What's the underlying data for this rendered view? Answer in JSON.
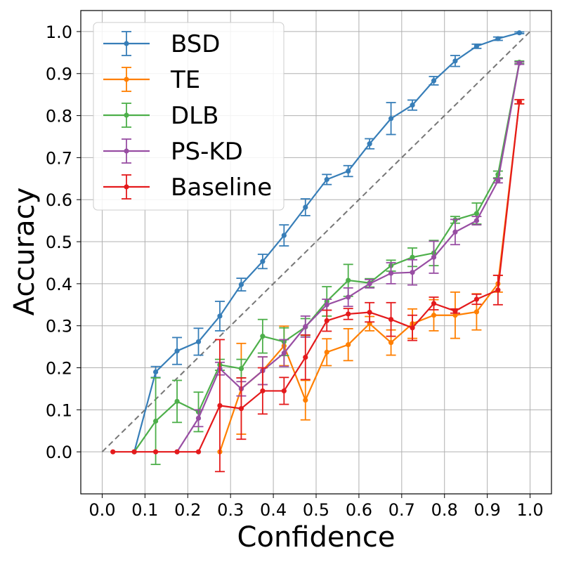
{
  "chart_data": {
    "type": "line",
    "title": "",
    "xlabel": "Confidence",
    "ylabel": "Accuracy",
    "xlim": [
      -0.05,
      1.05
    ],
    "ylim": [
      -0.1,
      1.05
    ],
    "xticks": [
      0.0,
      0.1,
      0.2,
      0.3,
      0.4,
      0.5,
      0.6,
      0.7,
      0.8,
      0.9,
      1.0
    ],
    "yticks": [
      0.0,
      0.1,
      0.2,
      0.3,
      0.4,
      0.5,
      0.6,
      0.7,
      0.8,
      0.9,
      1.0
    ],
    "xtick_labels": [
      "0.0",
      "0.1",
      "0.2",
      "0.3",
      "0.4",
      "0.5",
      "0.6",
      "0.7",
      "0.8",
      "0.9",
      "1.0"
    ],
    "ytick_labels": [
      "0.0",
      "0.1",
      "0.2",
      "0.3",
      "0.4",
      "0.5",
      "0.6",
      "0.7",
      "0.8",
      "0.9",
      "1.0"
    ],
    "grid": true,
    "legend_position": "top-left",
    "reference_line": {
      "x": [
        0,
        1
      ],
      "y": [
        0,
        1
      ],
      "style": "dashed",
      "color": "#777777"
    },
    "series": [
      {
        "name": "BSD",
        "color": "#377eb8",
        "x": [
          0.075,
          0.125,
          0.175,
          0.225,
          0.275,
          0.325,
          0.375,
          0.425,
          0.475,
          0.525,
          0.575,
          0.625,
          0.675,
          0.725,
          0.775,
          0.825,
          0.875,
          0.925,
          0.975
        ],
        "y": [
          0.0,
          0.19,
          0.24,
          0.262,
          0.323,
          0.398,
          0.453,
          0.515,
          0.582,
          0.648,
          0.668,
          0.733,
          0.793,
          0.825,
          0.883,
          0.93,
          0.965,
          0.983,
          0.997
        ],
        "err": [
          0.0,
          0.013,
          0.032,
          0.032,
          0.035,
          0.015,
          0.017,
          0.025,
          0.02,
          0.012,
          0.013,
          0.012,
          0.038,
          0.012,
          0.01,
          0.013,
          0.005,
          0.004,
          0.002
        ]
      },
      {
        "name": "TE",
        "color": "#ff7f00",
        "x": [
          0.275,
          0.325,
          0.375,
          0.425,
          0.475,
          0.525,
          0.575,
          0.625,
          0.675,
          0.725,
          0.775,
          0.825,
          0.875,
          0.925,
          0.975
        ],
        "y": [
          0.0,
          0.15,
          0.193,
          0.252,
          0.123,
          0.237,
          0.255,
          0.305,
          0.26,
          0.305,
          0.325,
          0.325,
          0.333,
          0.4,
          0.833
        ],
        "err": [
          0.0,
          0.108,
          0.033,
          0.047,
          0.047,
          0.032,
          0.038,
          0.017,
          0.03,
          0.035,
          0.037,
          0.055,
          0.043,
          0.02,
          0.005
        ]
      },
      {
        "name": "DLB",
        "color": "#4daf4a",
        "x": [
          0.075,
          0.125,
          0.175,
          0.225,
          0.275,
          0.325,
          0.375,
          0.425,
          0.475,
          0.525,
          0.575,
          0.625,
          0.675,
          0.725,
          0.775,
          0.825,
          0.875,
          0.925,
          0.975
        ],
        "y": [
          0.0,
          0.073,
          0.12,
          0.095,
          0.207,
          0.198,
          0.275,
          0.262,
          0.297,
          0.358,
          0.408,
          0.402,
          0.443,
          0.463,
          0.473,
          0.552,
          0.567,
          0.66,
          0.927
        ],
        "err": [
          0.0,
          0.103,
          0.05,
          0.047,
          0.013,
          0.022,
          0.04,
          0.033,
          0.02,
          0.035,
          0.038,
          0.01,
          0.013,
          0.022,
          0.03,
          0.008,
          0.025,
          0.008,
          0.003
        ]
      },
      {
        "name": "PS-KD",
        "color": "#984ea3",
        "x": [
          0.175,
          0.225,
          0.275,
          0.325,
          0.375,
          0.425,
          0.475,
          0.525,
          0.575,
          0.625,
          0.675,
          0.725,
          0.775,
          0.825,
          0.875,
          0.925,
          0.975
        ],
        "y": [
          0.0,
          0.08,
          0.198,
          0.15,
          0.193,
          0.235,
          0.298,
          0.35,
          0.368,
          0.4,
          0.425,
          0.427,
          0.463,
          0.523,
          0.55,
          0.645,
          0.925
        ],
        "err": [
          0.0,
          0.02,
          0.015,
          0.017,
          0.033,
          0.032,
          0.025,
          0.013,
          0.022,
          0.01,
          0.025,
          0.03,
          0.038,
          0.03,
          0.01,
          0.005,
          0.003
        ]
      },
      {
        "name": "Baseline",
        "color": "#e41a1c",
        "x": [
          0.025,
          0.075,
          0.125,
          0.175,
          0.225,
          0.275,
          0.325,
          0.375,
          0.425,
          0.475,
          0.525,
          0.575,
          0.625,
          0.675,
          0.725,
          0.775,
          0.825,
          0.875,
          0.925,
          0.975
        ],
        "y": [
          0.0,
          0.0,
          0.0,
          0.0,
          0.0,
          0.11,
          0.103,
          0.145,
          0.145,
          0.225,
          0.312,
          0.328,
          0.332,
          0.315,
          0.295,
          0.353,
          0.335,
          0.363,
          0.385,
          0.833
        ],
        "err": [
          0.0,
          0.0,
          0.0,
          0.0,
          0.0,
          0.157,
          0.073,
          0.055,
          0.032,
          0.053,
          0.025,
          0.013,
          0.023,
          0.04,
          0.03,
          0.015,
          0.005,
          0.012,
          0.035,
          0.005
        ]
      }
    ]
  }
}
